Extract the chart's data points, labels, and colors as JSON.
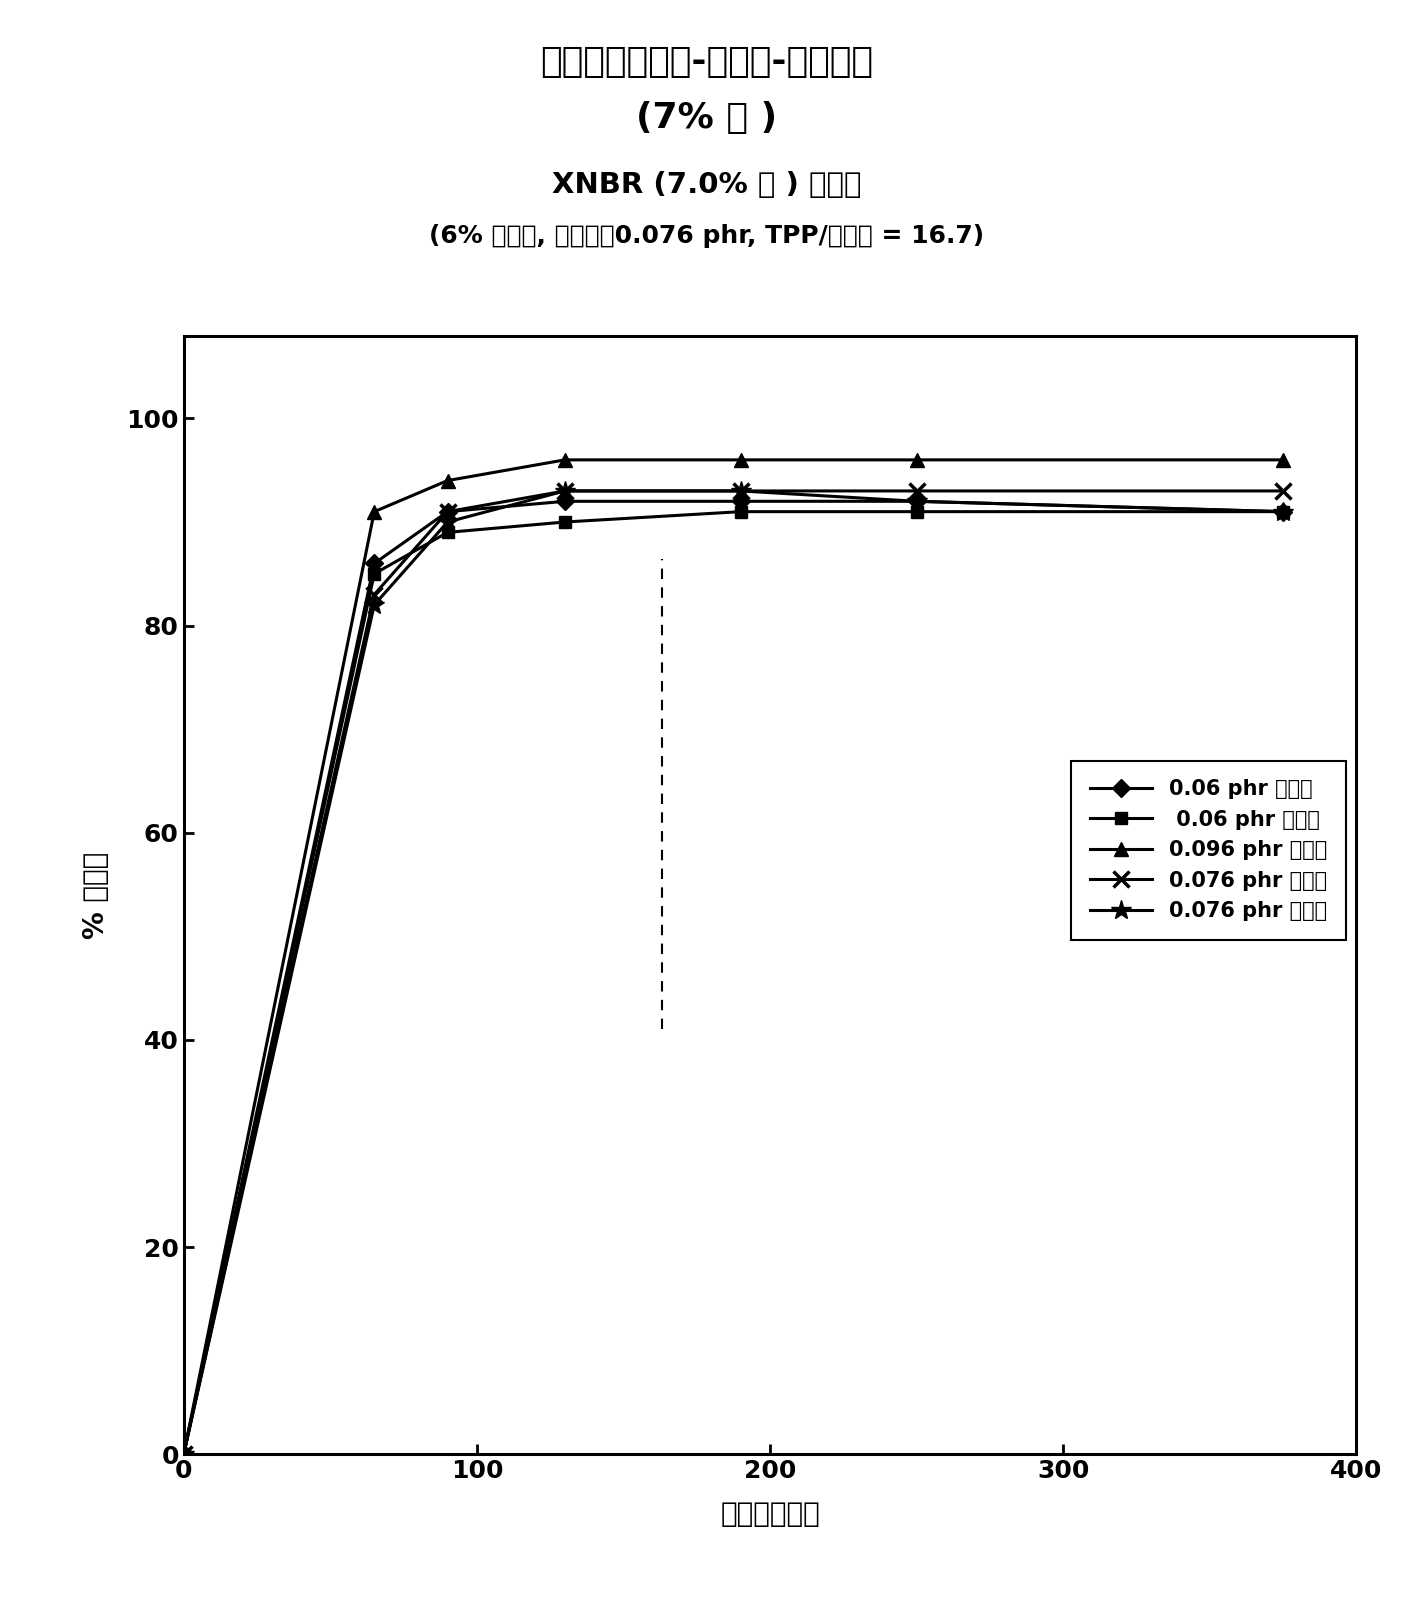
{
  "title_line1": "氢化甲基丙烯酸-丁二烯-腈三聚物",
  "title_line2": "(7% 酸 )",
  "subtitle_line1": "XNBR (7.0% 酸 ) 的氢化",
  "subtitle_line2": "(6% 聚合物, 催化剂：0.076 phr, TPP/催化剂 = 16.7)",
  "xlabel": "时间（分钟）",
  "ylabel": "% 氢化度",
  "xlim": [
    0,
    400
  ],
  "ylim": [
    0,
    108
  ],
  "yticks": [
    0,
    20,
    40,
    60,
    80,
    100
  ],
  "xticks": [
    0,
    100,
    200,
    300,
    400
  ],
  "series": [
    {
      "label": "0.06 phr 催化剂",
      "marker": "D",
      "x": [
        0,
        65,
        90,
        130,
        190,
        250,
        375
      ],
      "y": [
        0,
        86,
        91,
        92,
        92,
        92,
        91
      ]
    },
    {
      "label": " 0.06 phr 催化剂",
      "marker": "s",
      "x": [
        0,
        65,
        90,
        130,
        190,
        250,
        375
      ],
      "y": [
        0,
        85,
        89,
        90,
        91,
        91,
        91
      ]
    },
    {
      "label": "0.096 phr 催化剂",
      "marker": "^",
      "x": [
        0,
        65,
        90,
        130,
        190,
        250,
        375
      ],
      "y": [
        0,
        91,
        94,
        96,
        96,
        96,
        96
      ]
    },
    {
      "label": "0.076 phr 催化剂",
      "marker": "x",
      "x": [
        0,
        65,
        90,
        130,
        190,
        250,
        375
      ],
      "y": [
        0,
        83,
        91,
        93,
        93,
        93,
        93
      ]
    },
    {
      "label": "0.076 phr 催化剂",
      "marker": "*",
      "x": [
        0,
        65,
        90,
        130,
        190,
        250,
        375
      ],
      "y": [
        0,
        82,
        90,
        93,
        93,
        92,
        91
      ]
    }
  ],
  "background_color": "#ffffff",
  "line_color": "#000000",
  "title_fontsize": 26,
  "subtitle1_fontsize": 21,
  "subtitle2_fontsize": 18,
  "axis_label_fontsize": 20,
  "tick_fontsize": 18,
  "legend_fontsize": 15,
  "marker_sizes": [
    9,
    9,
    10,
    12,
    15
  ]
}
